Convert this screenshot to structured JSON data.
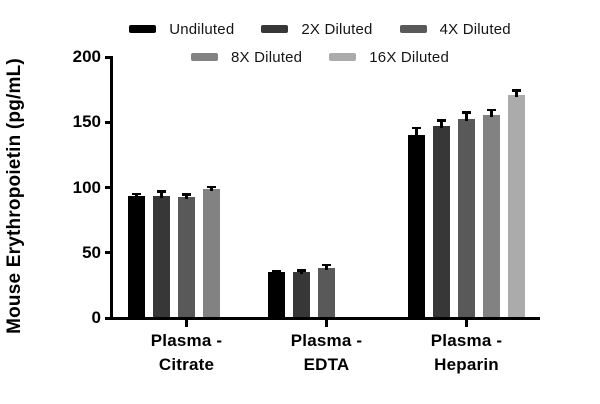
{
  "chart_data": {
    "type": "bar",
    "title": "",
    "xlabel": "",
    "ylabel": "Mouse Erythropoietin (pg/mL)",
    "ylim": [
      0,
      200
    ],
    "yticks": [
      0,
      50,
      100,
      150,
      200
    ],
    "grid": false,
    "legend_position": "top",
    "categories": [
      "Plasma -\nCitrate",
      "Plasma -\nEDTA",
      "Plasma -\nHeparin"
    ],
    "series": [
      {
        "name": "Undiluted",
        "color": "#000000",
        "values": [
          93.5,
          35,
          140.5
        ],
        "errors": [
          1.5,
          1,
          5
        ]
      },
      {
        "name": "2X Diluted",
        "color": "#373737",
        "values": [
          93.5,
          35.5,
          147
        ],
        "errors": [
          3.5,
          1,
          4.5
        ]
      },
      {
        "name": "4X Diluted",
        "color": "#595959",
        "values": [
          93,
          38,
          152.5
        ],
        "errors": [
          1.5,
          2.5,
          5
        ]
      },
      {
        "name": "8X Diluted",
        "color": "#828282",
        "values": [
          99,
          null,
          155.5
        ],
        "errors": [
          1.5,
          null,
          4
        ]
      },
      {
        "name": "16X Diluted",
        "color": "#ababab",
        "values": [
          null,
          null,
          171
        ],
        "errors": [
          null,
          null,
          3.5
        ]
      }
    ]
  }
}
